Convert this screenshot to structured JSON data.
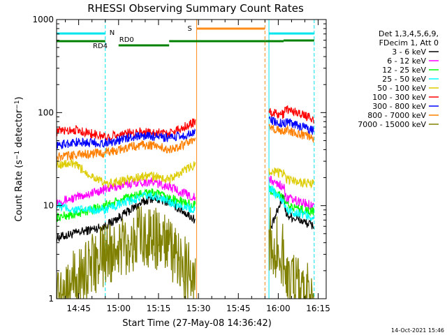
{
  "chart_data": {
    "type": "line",
    "title": "RHESSI Observing Summary Count Rates",
    "xlabel": "Start Time (27-May-08 14:36:42)",
    "ylabel": "Count Rate (s⁻¹ detector⁻¹)",
    "ylabel_main": "Count Rate (s",
    "ylabel_sup1": "−1",
    "ylabel_mid": " detector",
    "ylabel_sup2": "−1",
    "ylabel_end": ")",
    "yscale": "log",
    "ylim": [
      1,
      1000
    ],
    "xlim": [
      "14:36:42",
      "16:18:00"
    ],
    "yticks": [
      "1",
      "10",
      "100",
      "1000"
    ],
    "xticks": [
      "14:45",
      "15:00",
      "15:15",
      "15:30",
      "15:45",
      "16:00",
      "16:15"
    ],
    "timestamp": "14-Oct-2021 15:46",
    "legend_placement": "right",
    "legend_header": [
      "Det 1,3,4,5,6,9,",
      "FDecim 1, Att 0"
    ],
    "flags": [
      {
        "label": "N",
        "color": "#00e5ee"
      },
      {
        "label": "S",
        "color": "#ff8c1a"
      },
      {
        "label": "RD0",
        "color": "#008000"
      },
      {
        "label": "RD4",
        "color": "#008000"
      }
    ],
    "night_boundaries": [
      "14:36:42",
      "14:55:00",
      "15:56:30",
      "16:13:30"
    ],
    "saa_boundaries": [
      "15:29:20",
      "15:55:00"
    ],
    "series": [
      {
        "name": "3 - 6 keV",
        "color": "#000000",
        "values": [
          4.5,
          5,
          6,
          10,
          12,
          11,
          7,
          5,
          13,
          8,
          6
        ]
      },
      {
        "name": "6 - 12 keV",
        "color": "#ff00ff",
        "values": [
          11,
          12,
          15,
          18,
          18,
          16,
          12,
          19,
          16,
          12,
          10
        ]
      },
      {
        "name": "12 - 25 keV",
        "color": "#00ff00",
        "values": [
          7.5,
          8,
          10,
          13,
          14,
          12,
          10,
          15,
          12,
          10,
          8.5
        ]
      },
      {
        "name": "25 - 50 keV",
        "color": "#00ffff",
        "values": [
          10,
          9,
          9,
          12,
          13,
          11,
          9,
          16,
          11,
          9,
          7.5
        ]
      },
      {
        "name": "50 - 100 keV",
        "color": "#ddcc00",
        "values": [
          28,
          28,
          17,
          20,
          21,
          19,
          28,
          24,
          22,
          19,
          17
        ]
      },
      {
        "name": "100 - 300 keV",
        "color": "#ff0000",
        "values": [
          62,
          66,
          55,
          62,
          62,
          60,
          80,
          100,
          95,
          110,
          85
        ]
      },
      {
        "name": "300 - 800 keV",
        "color": "#0000ff",
        "values": [
          44,
          48,
          47,
          56,
          56,
          53,
          60,
          85,
          75,
          80,
          63
        ]
      },
      {
        "name": "800 - 7000 keV",
        "color": "#ff8000",
        "values": [
          33,
          35,
          37,
          44,
          45,
          40,
          50,
          70,
          62,
          66,
          52
        ]
      },
      {
        "name": "7000 - 15000 keV",
        "color": "#808000",
        "values": [
          1,
          1.5,
          3,
          4.5,
          4.8,
          3.5,
          1.5,
          4.5,
          3,
          1.5,
          1
        ]
      }
    ]
  }
}
